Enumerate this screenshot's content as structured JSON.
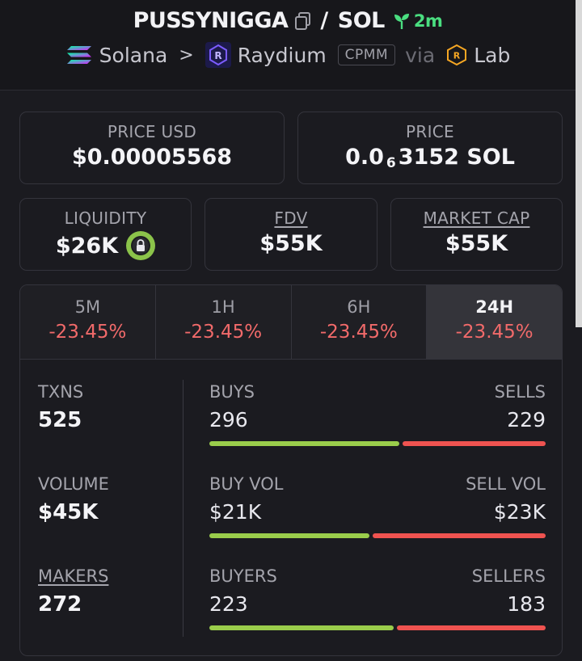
{
  "header": {
    "token": "PUSSYNIGGA",
    "separator": "/",
    "quote": "SOL",
    "age": "2m",
    "chain": "Solana",
    "dex": "Raydium",
    "pool_type": "CPMM",
    "via": "via",
    "launchpad": "Lab"
  },
  "cards": {
    "price_usd": {
      "label": "PRICE USD",
      "value": "$0.00005568"
    },
    "price": {
      "label": "PRICE",
      "prefix": "0.0",
      "zeros": "6",
      "digits": "3152",
      "unit": "SOL"
    },
    "liquidity": {
      "label": "LIQUIDITY",
      "value": "$26K"
    },
    "fdv": {
      "label": "FDV",
      "value": "$55K"
    },
    "market_cap": {
      "label": "MARKET CAP",
      "value": "$55K"
    }
  },
  "tabs": [
    {
      "label": "5M",
      "change": "-23.45%"
    },
    {
      "label": "1H",
      "change": "-23.45%"
    },
    {
      "label": "6H",
      "change": "-23.45%"
    },
    {
      "label": "24H",
      "change": "-23.45%"
    }
  ],
  "stats": {
    "txns": {
      "label": "TXNS",
      "value": "525"
    },
    "volume": {
      "label": "VOLUME",
      "value": "$45K"
    },
    "makers": {
      "label": "MAKERS",
      "value": "272"
    }
  },
  "pairs": {
    "txns": {
      "left_label": "BUYS",
      "right_label": "SELLS",
      "left_value": "296",
      "right_value": "229",
      "buy_fraction": 0.564
    },
    "volume": {
      "left_label": "BUY VOL",
      "right_label": "SELL VOL",
      "left_value": "$21K",
      "right_value": "$23K",
      "buy_fraction": 0.477
    },
    "makers": {
      "left_label": "BUYERS",
      "right_label": "SELLERS",
      "left_value": "223",
      "right_value": "183",
      "buy_fraction": 0.549
    }
  },
  "colors": {
    "positive": "#9acd4b",
    "negative": "#ef5350",
    "age": "#4ade80"
  }
}
